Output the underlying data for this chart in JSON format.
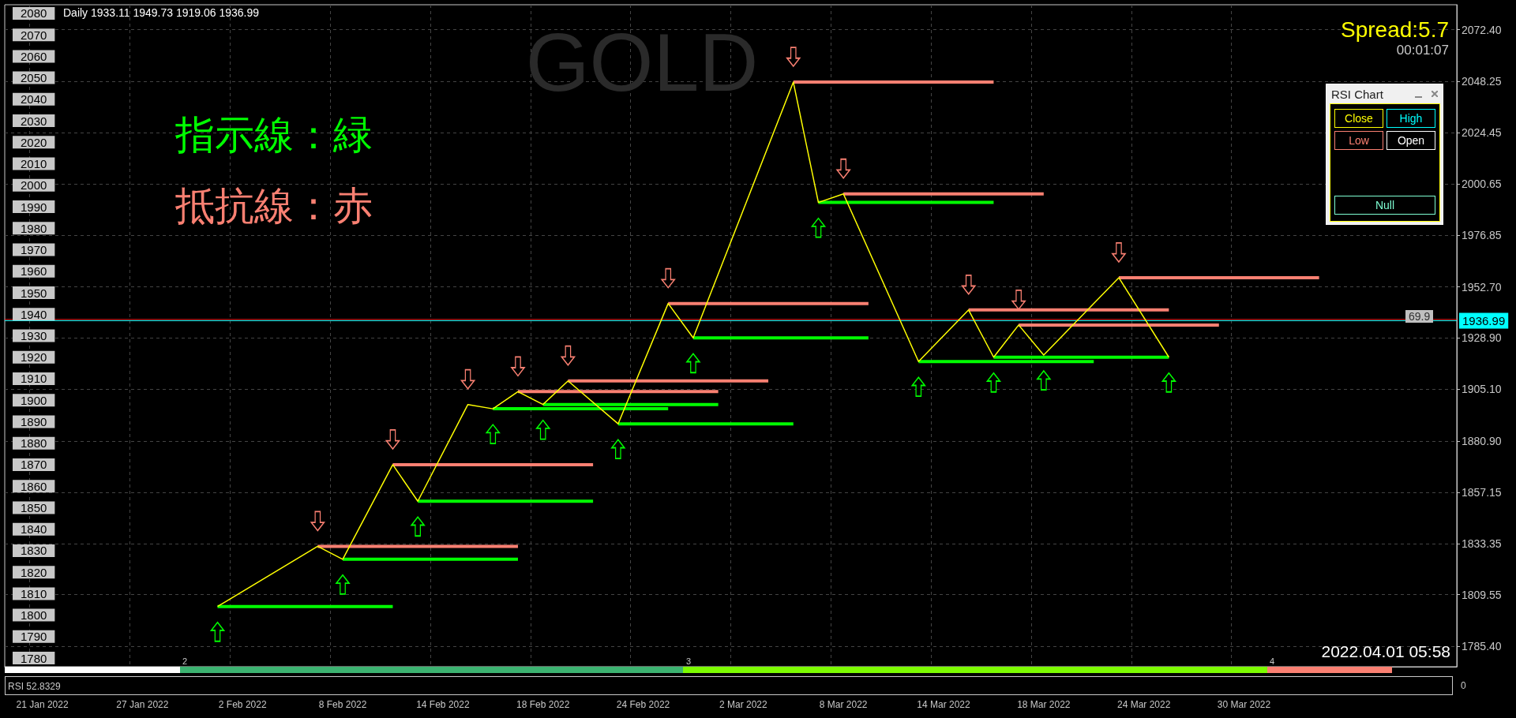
{
  "chart_data": {
    "type": "line",
    "title": "GOLD",
    "annotations": [
      "Daily 1933.11 1949.73 1919.06 1936.99",
      "Spread:5.7",
      "00:01:07",
      "指示線：緑",
      "抵抗線：赤",
      "69.9",
      "2022.04.01 05:58",
      "RSI 52.8329",
      "0",
      "2",
      "3",
      "4",
      "RSI Chart",
      "Close",
      "High",
      "Low",
      "Open",
      "Null"
    ],
    "categories": [
      null,
      "21 Jan 2022",
      null,
      null,
      null,
      "27 Jan 2022",
      null,
      null,
      null,
      "2 Feb 2022",
      null,
      null,
      null,
      "8 Feb 2022",
      null,
      null,
      null,
      "14 Feb 2022",
      null,
      null,
      null,
      "18 Feb 2022",
      null,
      null,
      null,
      "24 Feb 2022",
      null,
      null,
      null,
      "2 Mar 2022",
      null,
      null,
      null,
      "8 Mar 2022",
      null,
      null,
      null,
      "14 Mar 2022",
      null,
      null,
      null,
      "18 Mar 2022",
      null,
      null,
      null,
      "24 Mar 2022",
      null,
      null,
      null,
      "30 Mar 2022",
      null,
      null,
      null,
      null,
      null,
      null,
      null,
      null
    ],
    "series": [
      {
        "color": "#ffff00",
        "values": [
          null,
          null,
          null,
          null,
          null,
          null,
          null,
          null,
          1804,
          null,
          null,
          null,
          1832,
          1826,
          null,
          1870,
          1853,
          null,
          1898,
          1896,
          1904,
          1898,
          1909,
          null,
          1889,
          null,
          1945,
          1929,
          null,
          null,
          null,
          2048,
          1992,
          1996,
          null,
          null,
          1918,
          null,
          1942,
          1920,
          1935,
          1921,
          null,
          null,
          1957,
          null,
          1920,
          null,
          null,
          null,
          null,
          null,
          null,
          null,
          null,
          null,
          null,
          null
        ]
      },
      {
        "color": "#00ff00",
        "values": [
          null,
          null,
          null,
          null,
          null,
          null,
          null,
          null,
          1804,
          1804,
          1804,
          1804,
          1804,
          1804,
          1804,
          1804,
          null,
          null,
          null,
          null,
          null,
          null,
          null,
          null,
          null,
          null,
          null,
          null,
          null,
          null,
          null,
          null,
          null,
          null,
          null,
          null,
          null,
          null,
          null,
          null,
          null,
          null,
          null,
          null,
          null,
          null,
          null,
          null,
          null,
          null,
          null,
          null,
          null,
          null,
          null,
          null,
          null,
          null
        ]
      },
      {
        "color": "#00ff00",
        "values": [
          null,
          null,
          null,
          null,
          null,
          null,
          null,
          null,
          null,
          null,
          null,
          null,
          null,
          1826,
          1826,
          1826,
          1826,
          1826,
          1826,
          1826,
          1826,
          null,
          null,
          null,
          null,
          null,
          null,
          null,
          null,
          null,
          null,
          null,
          null,
          null,
          null,
          null,
          null,
          null,
          null,
          null,
          null,
          null,
          null,
          null,
          null,
          null,
          null,
          null,
          null,
          null,
          null,
          null,
          null,
          null,
          null,
          null,
          null,
          null
        ]
      },
      {
        "color": "#00ff00",
        "values": [
          null,
          null,
          null,
          null,
          null,
          null,
          null,
          null,
          null,
          null,
          null,
          null,
          null,
          null,
          null,
          null,
          1853,
          1853,
          1853,
          1853,
          1853,
          1853,
          1853,
          1853,
          null,
          null,
          null,
          null,
          null,
          null,
          null,
          null,
          null,
          null,
          null,
          null,
          null,
          null,
          null,
          null,
          null,
          null,
          null,
          null,
          null,
          null,
          null,
          null,
          null,
          null,
          null,
          null,
          null,
          null,
          null,
          null,
          null,
          null
        ]
      },
      {
        "color": "#00ff00",
        "values": [
          null,
          null,
          null,
          null,
          null,
          null,
          null,
          null,
          null,
          null,
          null,
          null,
          null,
          null,
          null,
          null,
          null,
          null,
          null,
          1896,
          1896,
          1896,
          1896,
          1896,
          1896,
          1896,
          1896,
          null,
          null,
          null,
          null,
          null,
          null,
          null,
          null,
          null,
          null,
          null,
          null,
          null,
          null,
          null,
          null,
          null,
          null,
          null,
          null,
          null,
          null,
          null,
          null,
          null,
          null,
          null,
          null,
          null,
          null,
          null
        ]
      },
      {
        "color": "#00ff00",
        "values": [
          null,
          null,
          null,
          null,
          null,
          null,
          null,
          null,
          null,
          null,
          null,
          null,
          null,
          null,
          null,
          null,
          null,
          null,
          null,
          null,
          null,
          1898,
          1898,
          1898,
          1898,
          1898,
          1898,
          1898,
          1898,
          null,
          null,
          null,
          null,
          null,
          null,
          null,
          null,
          null,
          null,
          null,
          null,
          null,
          null,
          null,
          null,
          null,
          null,
          null,
          null,
          null,
          null,
          null,
          null,
          null,
          null,
          null,
          null,
          null
        ]
      },
      {
        "color": "#00ff00",
        "values": [
          null,
          null,
          null,
          null,
          null,
          null,
          null,
          null,
          null,
          null,
          null,
          null,
          null,
          null,
          null,
          null,
          null,
          null,
          null,
          null,
          null,
          null,
          null,
          null,
          1889,
          1889,
          1889,
          1889,
          1889,
          1889,
          1889,
          1889,
          null,
          null,
          null,
          null,
          null,
          null,
          null,
          null,
          null,
          null,
          null,
          null,
          null,
          null,
          null,
          null,
          null,
          null,
          null,
          null,
          null,
          null,
          null,
          null,
          null,
          null
        ]
      },
      {
        "color": "#00ff00",
        "values": [
          null,
          null,
          null,
          null,
          null,
          null,
          null,
          null,
          null,
          null,
          null,
          null,
          null,
          null,
          null,
          null,
          null,
          null,
          null,
          null,
          null,
          null,
          null,
          null,
          null,
          null,
          null,
          1929,
          1929,
          1929,
          1929,
          1929,
          1929,
          1929,
          1929,
          null,
          null,
          null,
          null,
          null,
          null,
          null,
          null,
          null,
          null,
          null,
          null,
          null,
          null,
          null,
          null,
          null,
          null,
          null,
          null,
          null,
          null,
          null
        ]
      },
      {
        "color": "#00ff00",
        "values": [
          null,
          null,
          null,
          null,
          null,
          null,
          null,
          null,
          null,
          null,
          null,
          null,
          null,
          null,
          null,
          null,
          null,
          null,
          null,
          null,
          null,
          null,
          null,
          null,
          null,
          null,
          null,
          null,
          null,
          null,
          null,
          null,
          1992,
          1992,
          1992,
          1992,
          1992,
          1992,
          1992,
          1992,
          null,
          null,
          null,
          null,
          null,
          null,
          null,
          null,
          null,
          null,
          null,
          null,
          null,
          null,
          null,
          null,
          null,
          null
        ]
      },
      {
        "color": "#00ff00",
        "values": [
          null,
          null,
          null,
          null,
          null,
          null,
          null,
          null,
          null,
          null,
          null,
          null,
          null,
          null,
          null,
          null,
          null,
          null,
          null,
          null,
          null,
          null,
          null,
          null,
          null,
          null,
          null,
          null,
          null,
          null,
          null,
          null,
          null,
          null,
          null,
          null,
          1918,
          1918,
          1918,
          1918,
          1918,
          1918,
          1918,
          1918,
          null,
          null,
          null,
          null,
          null,
          null,
          null,
          null,
          null,
          null,
          null,
          null,
          null,
          null
        ]
      },
      {
        "color": "#00ff00",
        "values": [
          null,
          null,
          null,
          null,
          null,
          null,
          null,
          null,
          null,
          null,
          null,
          null,
          null,
          null,
          null,
          null,
          null,
          null,
          null,
          null,
          null,
          null,
          null,
          null,
          null,
          null,
          null,
          null,
          null,
          null,
          null,
          null,
          null,
          null,
          null,
          null,
          null,
          null,
          null,
          1920,
          1920,
          1920,
          1920,
          1920,
          1920,
          1920,
          1920,
          null,
          null,
          null,
          null,
          null,
          null,
          null,
          null,
          null,
          null,
          null
        ]
      },
      {
        "color": "#fa8072",
        "values": [
          null,
          null,
          null,
          null,
          null,
          null,
          null,
          null,
          null,
          null,
          null,
          null,
          1832,
          1832,
          1832,
          1832,
          1832,
          1832,
          1832,
          1832,
          1832,
          null,
          null,
          null,
          null,
          null,
          null,
          null,
          null,
          null,
          null,
          null,
          null,
          null,
          null,
          null,
          null,
          null,
          null,
          null,
          null,
          null,
          null,
          null,
          null,
          null,
          null,
          null,
          null,
          null,
          null,
          null,
          null,
          null,
          null,
          null,
          null,
          null
        ]
      },
      {
        "color": "#fa8072",
        "values": [
          null,
          null,
          null,
          null,
          null,
          null,
          null,
          null,
          null,
          null,
          null,
          null,
          null,
          null,
          null,
          1870,
          1870,
          1870,
          1870,
          1870,
          1870,
          1870,
          1870,
          1870,
          null,
          null,
          null,
          null,
          null,
          null,
          null,
          null,
          null,
          null,
          null,
          null,
          null,
          null,
          null,
          null,
          null,
          null,
          null,
          null,
          null,
          null,
          null,
          null,
          null,
          null,
          null,
          null,
          null,
          null,
          null,
          null,
          null,
          null
        ]
      },
      {
        "color": "#fa8072",
        "values": [
          null,
          null,
          null,
          null,
          null,
          null,
          null,
          null,
          null,
          null,
          null,
          null,
          null,
          null,
          null,
          null,
          null,
          null,
          null,
          null,
          1904,
          1904,
          1904,
          1904,
          1904,
          1904,
          1904,
          1904,
          1904,
          null,
          null,
          null,
          null,
          null,
          null,
          null,
          null,
          null,
          null,
          null,
          null,
          null,
          null,
          null,
          null,
          null,
          null,
          null,
          null,
          null,
          null,
          null,
          null,
          null,
          null,
          null,
          null,
          null
        ]
      },
      {
        "color": "#fa8072",
        "values": [
          null,
          null,
          null,
          null,
          null,
          null,
          null,
          null,
          null,
          null,
          null,
          null,
          null,
          null,
          null,
          null,
          null,
          null,
          null,
          null,
          null,
          null,
          1909,
          1909,
          1909,
          1909,
          1909,
          1909,
          1909,
          1909,
          1909,
          null,
          null,
          null,
          null,
          null,
          null,
          null,
          null,
          null,
          null,
          null,
          null,
          null,
          null,
          null,
          null,
          null,
          null,
          null,
          null,
          null,
          null,
          null,
          null,
          null,
          null,
          null
        ]
      },
      {
        "color": "#fa8072",
        "values": [
          null,
          null,
          null,
          null,
          null,
          null,
          null,
          null,
          null,
          null,
          null,
          null,
          null,
          null,
          null,
          null,
          null,
          null,
          null,
          null,
          null,
          null,
          null,
          null,
          null,
          null,
          1945,
          1945,
          1945,
          1945,
          1945,
          1945,
          1945,
          1945,
          1945,
          null,
          null,
          null,
          null,
          null,
          null,
          null,
          null,
          null,
          null,
          null,
          null,
          null,
          null,
          null,
          null,
          null,
          null,
          null,
          null,
          null,
          null,
          null
        ]
      },
      {
        "color": "#fa8072",
        "values": [
          null,
          null,
          null,
          null,
          null,
          null,
          null,
          null,
          null,
          null,
          null,
          null,
          null,
          null,
          null,
          null,
          null,
          null,
          null,
          null,
          null,
          null,
          null,
          null,
          null,
          null,
          null,
          null,
          null,
          null,
          null,
          2048,
          2048,
          2048,
          2048,
          2048,
          2048,
          2048,
          2048,
          2048,
          null,
          null,
          null,
          null,
          null,
          null,
          null,
          null,
          null,
          null,
          null,
          null,
          null,
          null,
          null,
          null,
          null,
          null
        ]
      },
      {
        "color": "#fa8072",
        "values": [
          null,
          null,
          null,
          null,
          null,
          null,
          null,
          null,
          null,
          null,
          null,
          null,
          null,
          null,
          null,
          null,
          null,
          null,
          null,
          null,
          null,
          null,
          null,
          null,
          null,
          null,
          null,
          null,
          null,
          null,
          null,
          null,
          null,
          1996,
          1996,
          1996,
          1996,
          1996,
          1996,
          1996,
          1996,
          1996,
          null,
          null,
          null,
          null,
          null,
          null,
          null,
          null,
          null,
          null,
          null,
          null,
          null,
          null,
          null,
          null
        ]
      },
      {
        "color": "#fa8072",
        "values": [
          null,
          null,
          null,
          null,
          null,
          null,
          null,
          null,
          null,
          null,
          null,
          null,
          null,
          null,
          null,
          null,
          null,
          null,
          null,
          null,
          null,
          null,
          null,
          null,
          null,
          null,
          null,
          null,
          null,
          null,
          null,
          null,
          null,
          null,
          null,
          null,
          null,
          null,
          1942,
          1942,
          1942,
          1942,
          1942,
          1942,
          1942,
          1942,
          1942,
          null,
          null,
          null,
          null,
          null,
          null,
          null,
          null,
          null,
          null,
          null
        ]
      },
      {
        "color": "#fa8072",
        "values": [
          null,
          null,
          null,
          null,
          null,
          null,
          null,
          null,
          null,
          null,
          null,
          null,
          null,
          null,
          null,
          null,
          null,
          null,
          null,
          null,
          null,
          null,
          null,
          null,
          null,
          null,
          null,
          null,
          null,
          null,
          null,
          null,
          null,
          null,
          null,
          null,
          null,
          null,
          null,
          null,
          1935,
          1935,
          1935,
          1935,
          1935,
          1935,
          1935,
          1935,
          1935,
          null,
          null,
          null,
          null,
          null,
          null,
          null,
          null,
          null
        ]
      },
      {
        "color": "#fa8072",
        "values": [
          null,
          null,
          null,
          null,
          null,
          null,
          null,
          null,
          null,
          null,
          null,
          null,
          null,
          null,
          null,
          null,
          null,
          null,
          null,
          null,
          null,
          null,
          null,
          null,
          null,
          null,
          null,
          null,
          null,
          null,
          null,
          null,
          null,
          null,
          null,
          null,
          null,
          null,
          null,
          null,
          null,
          null,
          null,
          null,
          1957,
          1957,
          1957,
          1957,
          1957,
          1957,
          1957,
          1957,
          1957,
          null,
          null,
          null,
          null,
          null
        ]
      }
    ],
    "ylim": [
      1776,
      2084
    ],
    "yticks": [
      1780,
      1790,
      1800,
      1810,
      1820,
      1830,
      1840,
      1850,
      1860,
      1870,
      1880,
      1890,
      1900,
      1910,
      1920,
      1930,
      1940,
      1950,
      1960,
      1970,
      1980,
      1990,
      2000,
      2010,
      2020,
      2030,
      2040,
      2050,
      2060,
      2070,
      2080
    ],
    "y2lim": [
      1776,
      2084
    ],
    "y2ticks": [
      {
        "value": 1785.4,
        "label": "1785.40"
      },
      1809.55,
      1833.35,
      1857.15,
      {
        "value": 1880.9,
        "label": "1880.90"
      },
      {
        "value": 1905.1,
        "label": "1905.10"
      },
      {
        "value": 1928.9,
        "label": "1928.90"
      },
      {
        "value": 1952.7,
        "label": "1952.70"
      },
      1976.85,
      2000.65,
      2024.45,
      2048.25,
      {
        "value": 2072.4,
        "label": "2072.40"
      }
    ],
    "ref_lines": [
      {
        "axis": "y2",
        "value": 1937.56,
        "color": "#ff2020"
      },
      {
        "axis": "y2",
        "value": 1936.99,
        "label": "1936.99",
        "color": "#00ffff"
      }
    ],
    "grid": true
  }
}
